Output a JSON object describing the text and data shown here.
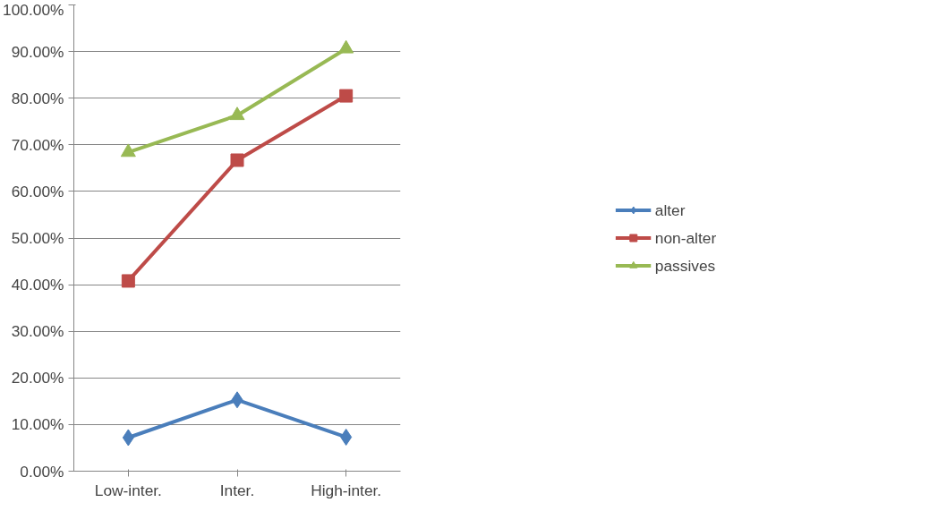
{
  "chart_data": {
    "type": "line",
    "categories": [
      "Low-inter.",
      "Inter.",
      "High-inter."
    ],
    "series": [
      {
        "name": "alter",
        "color": "#4a7ebb",
        "marker": "diamond",
        "values": [
          7.2,
          15.3,
          7.3
        ]
      },
      {
        "name": "non-alter",
        "color": "#be4b48",
        "marker": "square",
        "values": [
          40.8,
          66.7,
          80.5
        ]
      },
      {
        "name": "passives",
        "color": "#98b954",
        "marker": "triangle",
        "values": [
          68.4,
          76.3,
          90.6
        ]
      }
    ],
    "ylim": [
      0,
      100
    ],
    "yticks": [
      {
        "value": 0,
        "label": "0.00%"
      },
      {
        "value": 10,
        "label": "10.00%"
      },
      {
        "value": 20,
        "label": "20.00%"
      },
      {
        "value": 30,
        "label": "30.00%"
      },
      {
        "value": 40,
        "label": "40.00%"
      },
      {
        "value": 50,
        "label": "50.00%"
      },
      {
        "value": 60,
        "label": "60.00%"
      },
      {
        "value": 70,
        "label": "70.00%"
      },
      {
        "value": 80,
        "label": "80.00%"
      },
      {
        "value": 90,
        "label": "90.00%"
      },
      {
        "value": 100,
        "label": "100.00%"
      }
    ],
    "grid": "y",
    "legend": "right",
    "line_style": "solid"
  }
}
